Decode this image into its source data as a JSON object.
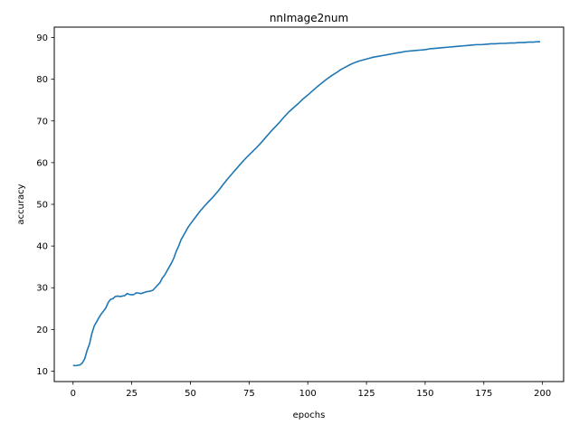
{
  "chart_data": {
    "type": "line",
    "title": "nnImage2num",
    "xlabel": "epochs",
    "ylabel": "accuracy",
    "xlim": [
      -8,
      209
    ],
    "ylim": [
      7.5,
      92.5
    ],
    "xticks": [
      0,
      25,
      50,
      75,
      100,
      125,
      150,
      175,
      200
    ],
    "yticks": [
      10,
      20,
      30,
      40,
      50,
      60,
      70,
      80,
      90
    ],
    "grid": false,
    "legend": "none",
    "series": [
      {
        "color": "#1f77b4",
        "points": [
          [
            0,
            11.4
          ],
          [
            1,
            11.3
          ],
          [
            2,
            11.4
          ],
          [
            3,
            11.5
          ],
          [
            4,
            12.0
          ],
          [
            5,
            13.0
          ],
          [
            6,
            15.0
          ],
          [
            7,
            16.5
          ],
          [
            8,
            19.0
          ],
          [
            9,
            20.8
          ],
          [
            10,
            21.8
          ],
          [
            11,
            22.8
          ],
          [
            12,
            23.7
          ],
          [
            13,
            24.4
          ],
          [
            14,
            25.2
          ],
          [
            15,
            26.5
          ],
          [
            16,
            27.2
          ],
          [
            17,
            27.4
          ],
          [
            18,
            27.9
          ],
          [
            19,
            28.0
          ],
          [
            20,
            27.9
          ],
          [
            21,
            28.0
          ],
          [
            22,
            28.1
          ],
          [
            23,
            28.6
          ],
          [
            24,
            28.4
          ],
          [
            25,
            28.3
          ],
          [
            26,
            28.4
          ],
          [
            27,
            28.8
          ],
          [
            28,
            28.7
          ],
          [
            29,
            28.6
          ],
          [
            30,
            28.8
          ],
          [
            31,
            29.0
          ],
          [
            32,
            29.1
          ],
          [
            33,
            29.2
          ],
          [
            34,
            29.4
          ],
          [
            35,
            30.0
          ],
          [
            36,
            30.6
          ],
          [
            37,
            31.2
          ],
          [
            38,
            32.3
          ],
          [
            39,
            33.0
          ],
          [
            40,
            34.0
          ],
          [
            41,
            35.0
          ],
          [
            42,
            36.0
          ],
          [
            43,
            37.2
          ],
          [
            44,
            38.8
          ],
          [
            45,
            40.0
          ],
          [
            46,
            41.5
          ],
          [
            47,
            42.5
          ],
          [
            48,
            43.5
          ],
          [
            49,
            44.5
          ],
          [
            50,
            45.3
          ],
          [
            52,
            46.8
          ],
          [
            54,
            48.3
          ],
          [
            56,
            49.6
          ],
          [
            58,
            50.8
          ],
          [
            60,
            52.0
          ],
          [
            62,
            53.3
          ],
          [
            64,
            54.8
          ],
          [
            66,
            56.2
          ],
          [
            68,
            57.5
          ],
          [
            70,
            58.8
          ],
          [
            72,
            60.1
          ],
          [
            74,
            61.3
          ],
          [
            76,
            62.4
          ],
          [
            78,
            63.5
          ],
          [
            80,
            64.7
          ],
          [
            82,
            66.0
          ],
          [
            84,
            67.3
          ],
          [
            86,
            68.5
          ],
          [
            88,
            69.7
          ],
          [
            90,
            71.0
          ],
          [
            92,
            72.2
          ],
          [
            94,
            73.2
          ],
          [
            96,
            74.2
          ],
          [
            98,
            75.3
          ],
          [
            100,
            76.2
          ],
          [
            102,
            77.2
          ],
          [
            104,
            78.2
          ],
          [
            106,
            79.1
          ],
          [
            108,
            80.0
          ],
          [
            110,
            80.8
          ],
          [
            112,
            81.5
          ],
          [
            114,
            82.3
          ],
          [
            116,
            82.9
          ],
          [
            118,
            83.5
          ],
          [
            120,
            84.0
          ],
          [
            122,
            84.4
          ],
          [
            124,
            84.7
          ],
          [
            126,
            85.0
          ],
          [
            128,
            85.3
          ],
          [
            130,
            85.5
          ],
          [
            132,
            85.7
          ],
          [
            134,
            85.9
          ],
          [
            136,
            86.1
          ],
          [
            138,
            86.3
          ],
          [
            140,
            86.5
          ],
          [
            142,
            86.7
          ],
          [
            144,
            86.8
          ],
          [
            146,
            86.9
          ],
          [
            148,
            87.0
          ],
          [
            150,
            87.1
          ],
          [
            152,
            87.3
          ],
          [
            154,
            87.4
          ],
          [
            156,
            87.5
          ],
          [
            158,
            87.6
          ],
          [
            160,
            87.7
          ],
          [
            162,
            87.8
          ],
          [
            164,
            87.9
          ],
          [
            166,
            88.0
          ],
          [
            168,
            88.1
          ],
          [
            170,
            88.2
          ],
          [
            172,
            88.3
          ],
          [
            174,
            88.3
          ],
          [
            176,
            88.4
          ],
          [
            178,
            88.5
          ],
          [
            180,
            88.5
          ],
          [
            182,
            88.6
          ],
          [
            184,
            88.6
          ],
          [
            186,
            88.7
          ],
          [
            188,
            88.7
          ],
          [
            190,
            88.8
          ],
          [
            192,
            88.8
          ],
          [
            194,
            88.9
          ],
          [
            196,
            88.9
          ],
          [
            198,
            89.0
          ],
          [
            199,
            89.0
          ]
        ]
      }
    ]
  }
}
